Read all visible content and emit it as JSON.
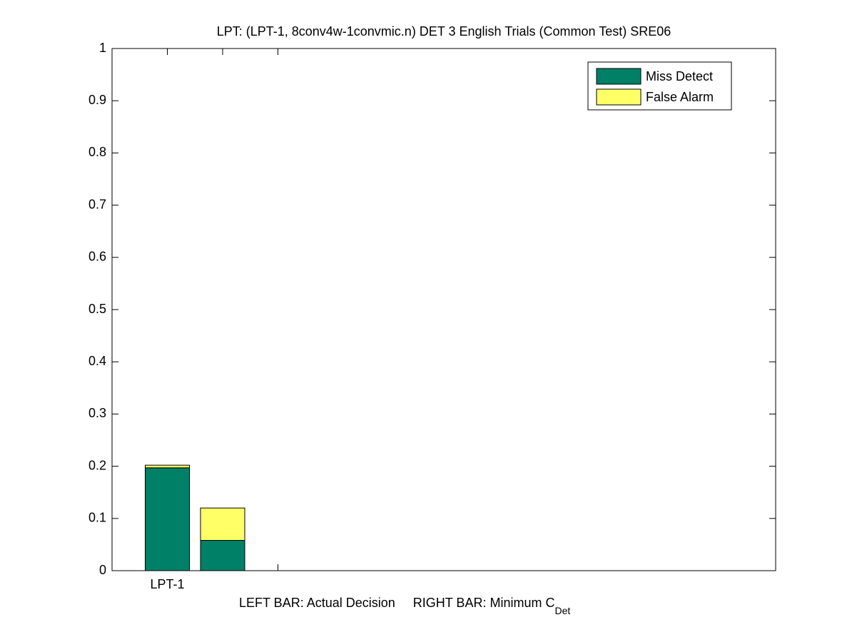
{
  "chart_data": {
    "type": "stacked_bar",
    "title": "LPT: (LPT-1, 8conv4w-1convmic.n) DET 3 English Trials (Common Test) SRE06",
    "xlabel": "LEFT BAR: Actual Decision     RIGHT BAR: Minimum C",
    "xlabel_subscript": "Det",
    "x": [
      1,
      2
    ],
    "series": [
      {
        "name": "Miss Detect",
        "color": "#008066",
        "values": [
          0.197,
          0.058
        ]
      },
      {
        "name": "False Alarm",
        "color": "#ffff66",
        "values": [
          0.005,
          0.062
        ]
      }
    ],
    "xlim": [
      0,
      12
    ],
    "xticks": [
      1,
      2,
      3
    ],
    "xtick_labels": [
      "LPT-1"
    ],
    "ylim": [
      0,
      1
    ],
    "yticks": [
      0,
      0.1,
      0.2,
      0.3,
      0.4,
      0.5,
      0.6,
      0.7,
      0.8,
      0.9,
      1
    ],
    "legend": "top-right"
  }
}
